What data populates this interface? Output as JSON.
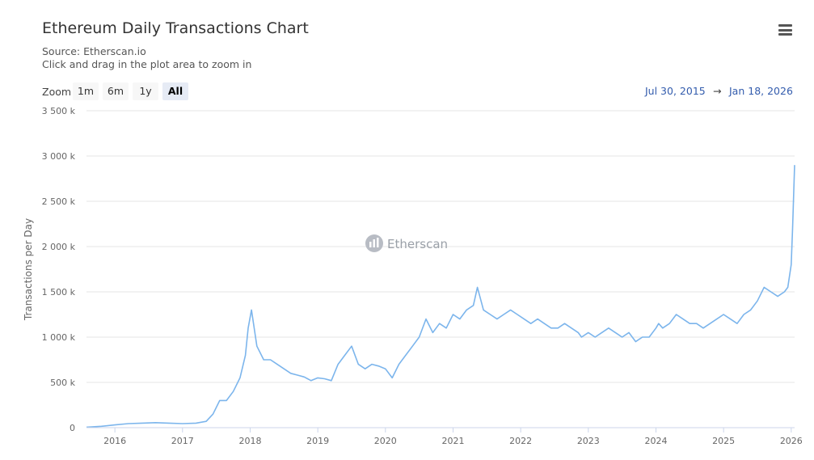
{
  "header": {
    "title": "Ethereum Daily Transactions Chart",
    "source": "Source: Etherscan.io",
    "hint": "Click and drag in the plot area to zoom in"
  },
  "menu_icon": "hamburger-menu-icon",
  "zoom": {
    "label": "Zoom",
    "buttons": [
      "1m",
      "6m",
      "1y",
      "All"
    ],
    "selected": "All"
  },
  "range": {
    "from": "Jul 30, 2015",
    "arrow": "→",
    "to": "Jan 18, 2026"
  },
  "watermark": "Etherscan",
  "colors": {
    "series": "#7cb5ec",
    "range_text": "#335cad"
  },
  "chart_data": {
    "type": "line",
    "title": "Ethereum Daily Transactions Chart",
    "ylabel": "Transactions per Day",
    "xlabel": "",
    "ylim": [
      0,
      3500000
    ],
    "xlim": [
      2015.58,
      2026.05
    ],
    "y_ticks": [
      0,
      500000,
      1000000,
      1500000,
      2000000,
      2500000,
      3000000,
      3500000
    ],
    "y_tick_labels": [
      "0",
      "500 k",
      "1 000 k",
      "1 500 k",
      "2 000 k",
      "2 500 k",
      "3 000 k",
      "3 500 k"
    ],
    "x_ticks": [
      2016,
      2017,
      2018,
      2019,
      2020,
      2021,
      2022,
      2023,
      2024,
      2025,
      2026
    ],
    "x_tick_labels": [
      "2016",
      "2017",
      "2018",
      "2019",
      "2020",
      "2021",
      "2022",
      "2023",
      "2024",
      "2025",
      "2026"
    ],
    "grid": true,
    "series": [
      {
        "x": [
          2015.58,
          2015.8,
          2016.0,
          2016.2,
          2016.4,
          2016.6,
          2016.8,
          2017.0,
          2017.2,
          2017.35,
          2017.45,
          2017.55,
          2017.65,
          2017.75,
          2017.85,
          2017.93,
          2017.97,
          2018.02,
          2018.1,
          2018.2,
          2018.3,
          2018.4,
          2018.5,
          2018.6,
          2018.7,
          2018.8,
          2018.9,
          2019.0,
          2019.1,
          2019.2,
          2019.3,
          2019.4,
          2019.5,
          2019.6,
          2019.7,
          2019.8,
          2019.9,
          2020.0,
          2020.1,
          2020.2,
          2020.3,
          2020.4,
          2020.5,
          2020.6,
          2020.7,
          2020.8,
          2020.9,
          2021.0,
          2021.1,
          2021.2,
          2021.3,
          2021.36,
          2021.45,
          2021.55,
          2021.65,
          2021.75,
          2021.85,
          2021.95,
          2022.05,
          2022.15,
          2022.25,
          2022.35,
          2022.45,
          2022.55,
          2022.65,
          2022.75,
          2022.85,
          2022.9,
          2023.0,
          2023.1,
          2023.2,
          2023.3,
          2023.4,
          2023.5,
          2023.6,
          2023.7,
          2023.8,
          2023.9,
          2024.0,
          2024.04,
          2024.1,
          2024.2,
          2024.3,
          2024.4,
          2024.5,
          2024.6,
          2024.7,
          2024.8,
          2024.9,
          2025.0,
          2025.1,
          2025.2,
          2025.3,
          2025.4,
          2025.5,
          2025.6,
          2025.7,
          2025.8,
          2025.9,
          2025.95,
          2026.0,
          2026.02,
          2026.05
        ],
        "y": [
          5000,
          15000,
          30000,
          45000,
          50000,
          55000,
          50000,
          45000,
          50000,
          70000,
          150000,
          300000,
          300000,
          400000,
          550000,
          800000,
          1100000,
          1300000,
          900000,
          750000,
          750000,
          700000,
          650000,
          600000,
          580000,
          560000,
          520000,
          550000,
          540000,
          520000,
          700000,
          800000,
          900000,
          700000,
          650000,
          700000,
          680000,
          650000,
          550000,
          700000,
          800000,
          900000,
          1000000,
          1200000,
          1050000,
          1150000,
          1100000,
          1250000,
          1200000,
          1300000,
          1350000,
          1550000,
          1300000,
          1250000,
          1200000,
          1250000,
          1300000,
          1250000,
          1200000,
          1150000,
          1200000,
          1150000,
          1100000,
          1100000,
          1150000,
          1100000,
          1050000,
          1000000,
          1050000,
          1000000,
          1050000,
          1100000,
          1050000,
          1000000,
          1050000,
          950000,
          1000000,
          1000000,
          1100000,
          1150000,
          1100000,
          1150000,
          1250000,
          1200000,
          1150000,
          1150000,
          1100000,
          1150000,
          1200000,
          1250000,
          1200000,
          1150000,
          1250000,
          1300000,
          1400000,
          1550000,
          1500000,
          1450000,
          1500000,
          1550000,
          1800000,
          2200000,
          2900000
        ]
      }
    ]
  }
}
